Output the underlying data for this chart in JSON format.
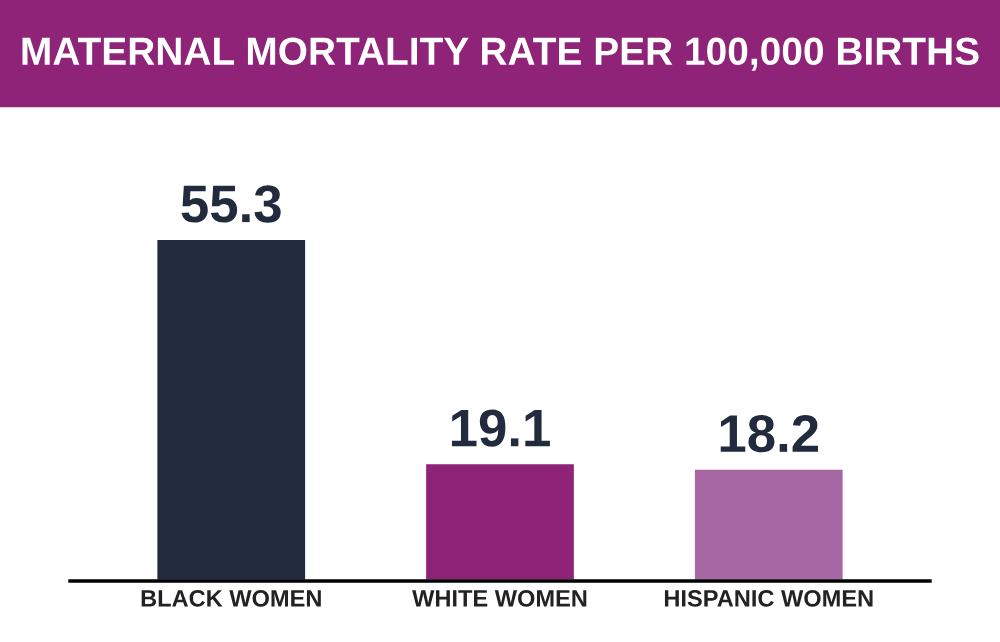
{
  "chart_data": {
    "type": "bar",
    "title": "MATERNAL MORTALITY RATE PER 100,000 BIRTHS",
    "categories": [
      "BLACK WOMEN",
      "WHITE WOMEN",
      "HISPANIC WOMEN"
    ],
    "values": [
      55.3,
      19.1,
      18.2
    ],
    "colors": [
      "#222b3d",
      "#8e2377",
      "#a767a3"
    ],
    "data_labels": true,
    "grid": false,
    "legend": false
  }
}
